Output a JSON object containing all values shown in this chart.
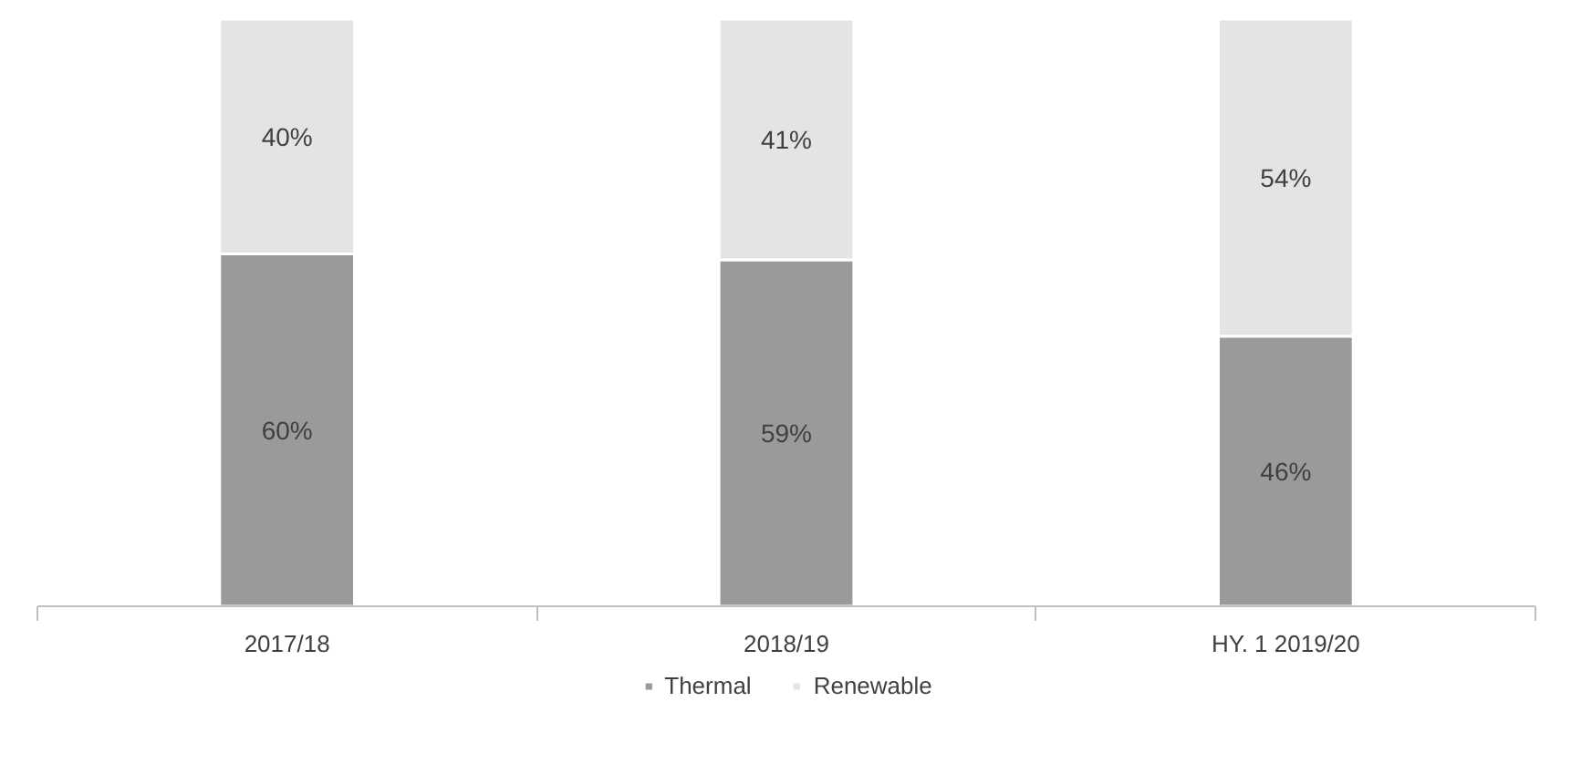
{
  "chart_data": {
    "type": "bar",
    "stacked": true,
    "categories": [
      "2017/18",
      "2018/19",
      "HY. 1 2019/20"
    ],
    "series": [
      {
        "name": "Thermal",
        "color": "#9a9a9a",
        "values": [
          60,
          59,
          46
        ],
        "value_labels": [
          "60%",
          "59%",
          "46%"
        ]
      },
      {
        "name": "Renewable",
        "color": "#e4e4e4",
        "values": [
          40,
          41,
          54
        ],
        "value_labels": [
          "40%",
          "41%",
          "54%"
        ]
      }
    ],
    "data_labels": true,
    "legend": "bottom",
    "tick_labels": "x"
  }
}
